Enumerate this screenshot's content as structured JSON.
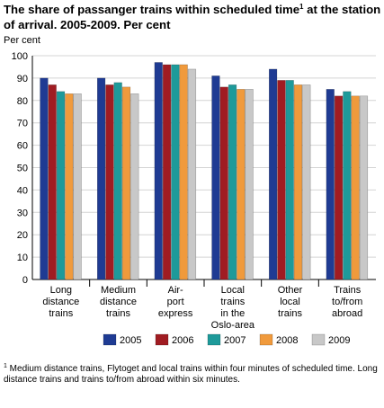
{
  "title": "The share of passanger trains within scheduled time",
  "title_sup": "1",
  "title_rest": " at the station of arrival. 2005-2009. Per cent",
  "footnote_sup": "1",
  "footnote": " Medium distance trains, Flytoget and local trains within four minutes of scheduled time. Long distance trains and trains to/from abroad within six minutes.",
  "chart_data": {
    "type": "bar",
    "ylabel": "Per cent",
    "ylim": [
      0,
      100
    ],
    "yticks": [
      0,
      10,
      20,
      30,
      40,
      50,
      60,
      70,
      80,
      90,
      100
    ],
    "grid": true,
    "legend_position": "bottom",
    "categories": [
      [
        "Long",
        "distance",
        "trains"
      ],
      [
        "Medium",
        "distance",
        "trains"
      ],
      [
        "Air-",
        "port",
        "express"
      ],
      [
        "Local",
        "trains",
        "in the",
        "Oslo-area"
      ],
      [
        "Other",
        "local",
        "trains"
      ],
      [
        "Trains",
        "to/from",
        "abroad"
      ]
    ],
    "series": [
      {
        "name": "2005",
        "color": "#1f3b93",
        "values": [
          90,
          90,
          97,
          91,
          94,
          85
        ]
      },
      {
        "name": "2006",
        "color": "#a01c22",
        "values": [
          87,
          87,
          96,
          86,
          89,
          82
        ]
      },
      {
        "name": "2007",
        "color": "#1e9a9a",
        "values": [
          84,
          88,
          96,
          87,
          89,
          84
        ]
      },
      {
        "name": "2008",
        "color": "#f09a3c",
        "values": [
          83,
          86,
          96,
          85,
          87,
          82
        ]
      },
      {
        "name": "2009",
        "color": "#c8c8c8",
        "values": [
          83,
          83,
          94,
          85,
          87,
          82
        ]
      }
    ]
  }
}
